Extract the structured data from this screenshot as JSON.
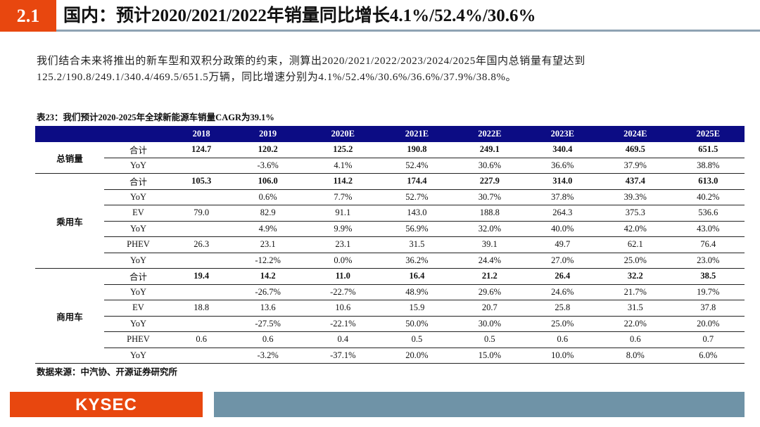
{
  "header": {
    "section": "2.1",
    "title": "国内：预计2020/2021/2022年销量同比增长4.1%/52.4%/30.6%"
  },
  "paragraph": "我们结合未来将推出的新车型和双积分政策的约束，测算出2020/2021/2022/2023/2024/2025年国内总销量有望达到125.2/190.8/249.1/340.4/469.5/651.5万辆，同比增速分别为4.1%/52.4%/30.6%/36.6%/37.9%/38.8%。",
  "table": {
    "caption": "表23：我们预计2020-2025年全球新能源车销量CAGR为39.1%",
    "columns": [
      "2018",
      "2019",
      "2020E",
      "2021E",
      "2022E",
      "2023E",
      "2024E",
      "2025E"
    ],
    "groups": [
      {
        "name": "总销量",
        "rows": [
          {
            "label": "合计",
            "bold": true,
            "values": [
              "124.7",
              "120.2",
              "125.2",
              "190.8",
              "249.1",
              "340.4",
              "469.5",
              "651.5"
            ]
          },
          {
            "label": "YoY",
            "values": [
              "",
              "-3.6%",
              "4.1%",
              "52.4%",
              "30.6%",
              "36.6%",
              "37.9%",
              "38.8%"
            ]
          }
        ]
      },
      {
        "name": "乘用车",
        "rows": [
          {
            "label": "合计",
            "bold": true,
            "values": [
              "105.3",
              "106.0",
              "114.2",
              "174.4",
              "227.9",
              "314.0",
              "437.4",
              "613.0"
            ]
          },
          {
            "label": "YoY",
            "values": [
              "",
              "0.6%",
              "7.7%",
              "52.7%",
              "30.7%",
              "37.8%",
              "39.3%",
              "40.2%"
            ]
          },
          {
            "label": "EV",
            "values": [
              "79.0",
              "82.9",
              "91.1",
              "143.0",
              "188.8",
              "264.3",
              "375.3",
              "536.6"
            ]
          },
          {
            "label": "YoY",
            "values": [
              "",
              "4.9%",
              "9.9%",
              "56.9%",
              "32.0%",
              "40.0%",
              "42.0%",
              "43.0%"
            ]
          },
          {
            "label": "PHEV",
            "values": [
              "26.3",
              "23.1",
              "23.1",
              "31.5",
              "39.1",
              "49.7",
              "62.1",
              "76.4"
            ]
          },
          {
            "label": "YoY",
            "values": [
              "",
              "-12.2%",
              "0.0%",
              "36.2%",
              "24.4%",
              "27.0%",
              "25.0%",
              "23.0%"
            ]
          }
        ]
      },
      {
        "name": "商用车",
        "rows": [
          {
            "label": "合计",
            "bold": true,
            "values": [
              "19.4",
              "14.2",
              "11.0",
              "16.4",
              "21.2",
              "26.4",
              "32.2",
              "38.5"
            ]
          },
          {
            "label": "YoY",
            "values": [
              "",
              "-26.7%",
              "-22.7%",
              "48.9%",
              "29.6%",
              "24.6%",
              "21.7%",
              "19.7%"
            ]
          },
          {
            "label": "EV",
            "values": [
              "18.8",
              "13.6",
              "10.6",
              "15.9",
              "20.7",
              "25.8",
              "31.5",
              "37.8"
            ]
          },
          {
            "label": "YoY",
            "values": [
              "",
              "-27.5%",
              "-22.1%",
              "50.0%",
              "30.0%",
              "25.0%",
              "22.0%",
              "20.0%"
            ]
          },
          {
            "label": "PHEV",
            "values": [
              "0.6",
              "0.6",
              "0.4",
              "0.5",
              "0.5",
              "0.6",
              "0.6",
              "0.7"
            ]
          },
          {
            "label": "YoY",
            "values": [
              "",
              "-3.2%",
              "-37.1%",
              "20.0%",
              "15.0%",
              "10.0%",
              "8.0%",
              "6.0%"
            ]
          }
        ]
      }
    ],
    "source": "数据来源：中汽协、开源证券研究所"
  },
  "footer": {
    "logo": "KYSEC"
  }
}
